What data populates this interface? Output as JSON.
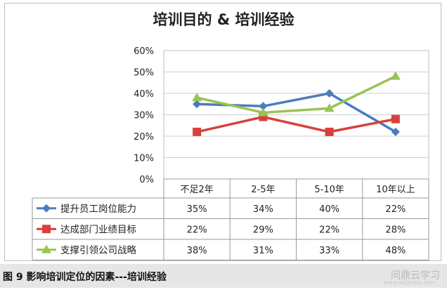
{
  "chart_data": {
    "type": "line",
    "title": "培训目的  & 培训经验",
    "categories": [
      "不足2年",
      "2-5年",
      "5-10年",
      "10年以上"
    ],
    "ylim": [
      0,
      60
    ],
    "yticks": [
      "0%",
      "10%",
      "20%",
      "30%",
      "40%",
      "50%",
      "60%"
    ],
    "grid": true,
    "legend": "data-table-left",
    "series": [
      {
        "name": "提升员工岗位能力",
        "values": [
          35,
          34,
          40,
          22
        ],
        "labels": [
          "35%",
          "34%",
          "40%",
          "22%"
        ],
        "color": "#4a7ebb",
        "marker": "diamond"
      },
      {
        "name": "达成部门业绩目标",
        "values": [
          22,
          29,
          22,
          28
        ],
        "labels": [
          "22%",
          "29%",
          "22%",
          "28%"
        ],
        "color": "#d9403a",
        "marker": "square"
      },
      {
        "name": "支撑引领公司战略",
        "values": [
          38,
          31,
          33,
          48
        ],
        "labels": [
          "38%",
          "31%",
          "33%",
          "48%"
        ],
        "color": "#98c454",
        "marker": "triangle"
      }
    ]
  },
  "caption": "图 9 影响培训定位的因素---培训经验",
  "watermark": "问鼎云学习",
  "watermark_sub": "www.wdxuexi.com"
}
